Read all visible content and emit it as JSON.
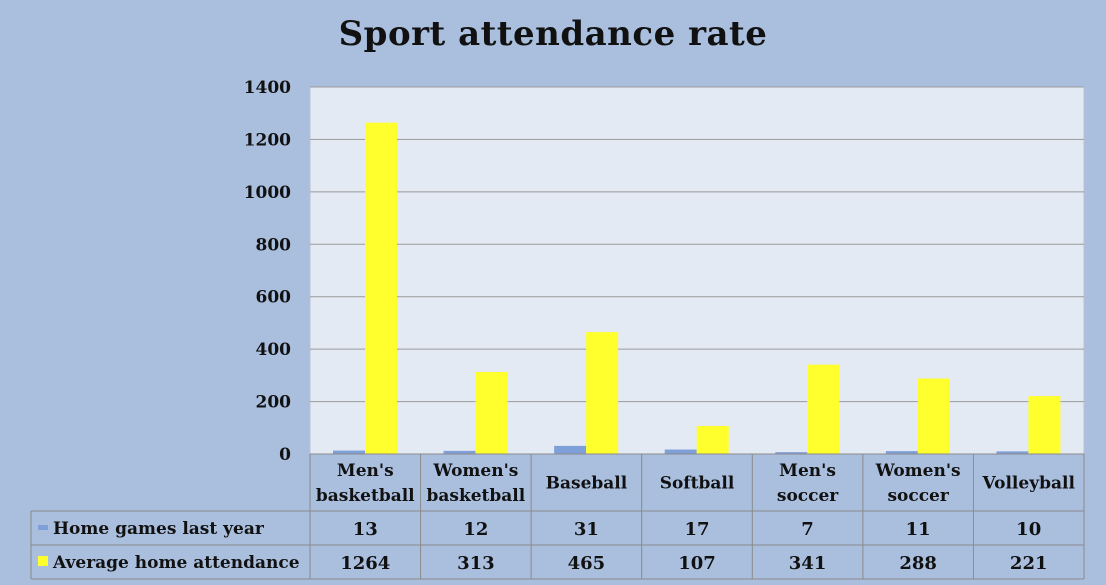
{
  "chart_data": {
    "type": "bar",
    "title": "Sport attendance rate",
    "categories": [
      [
        "Men's",
        "basketball"
      ],
      [
        "Women's",
        "basketball"
      ],
      [
        "Baseball"
      ],
      [
        "Softball"
      ],
      [
        "Men's",
        "soccer"
      ],
      [
        "Women's",
        "soccer"
      ],
      [
        "Volleyball"
      ]
    ],
    "series": [
      {
        "name": "Home games last year",
        "values": [
          13,
          12,
          31,
          17,
          7,
          11,
          10
        ],
        "color": "#7f9fd8"
      },
      {
        "name": "Average home attendance",
        "values": [
          1264,
          313,
          465,
          107,
          341,
          288,
          221
        ],
        "color": "#ffff2e"
      }
    ],
    "ylim": [
      0,
      1400
    ],
    "yticks": [
      0,
      200,
      400,
      600,
      800,
      1000,
      1200,
      1400
    ],
    "grid": true,
    "data_table": true,
    "colors": {
      "background": "#aabfde",
      "plot_background": "#e4eaf4",
      "gridline": "#9a9a9a",
      "table_border": "#8a8a8a"
    }
  }
}
